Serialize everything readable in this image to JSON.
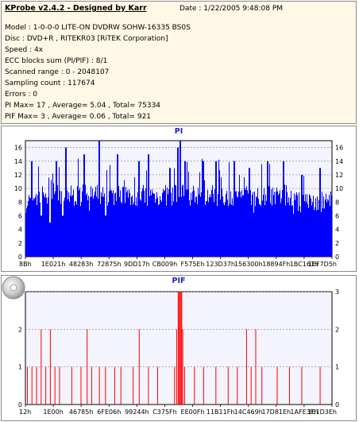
{
  "header": {
    "app_title": "KProbe v2.4.2 - Designed by Karr",
    "date": "Date : 1/22/2005 9:48:08 PM"
  },
  "info_lines": [
    "Model : 1-0-0-0 LITE-ON DVDRW SOHW-16335 BS0S",
    "Disc : DVD+R , RITEKR03 [RiTEK Corporation]",
    "Speed : 4x",
    "ECC blocks sum (PI/PIF) : 8/1",
    "Scanned range : 0 - 2048107",
    "Sampling count : 117674",
    "Errors : 0",
    "PI Max= 17 , Average= 5.04 , Total= 75334",
    "PIF Max= 3 , Average= 0.06 , Total= 921"
  ],
  "chart_data": [
    {
      "type": "bar",
      "title": "PI",
      "ylim": [
        0,
        17
      ],
      "yticks": [
        0,
        2,
        4,
        6,
        8,
        10,
        12,
        14,
        16
      ],
      "xticks": [
        "8Bh",
        "1E021h",
        "48283h",
        "72875h",
        "9DD17h",
        "CB009h",
        "F575Eh",
        "123D37h",
        "156300h",
        "18894Fh",
        "1BC161h",
        "1EF7D5h"
      ],
      "grid": true,
      "bar_color": "#0000ff",
      "baseline": [
        8,
        9,
        9,
        10,
        9,
        9,
        9,
        9,
        9,
        9,
        9,
        9,
        9,
        9,
        9,
        9,
        9,
        9,
        9,
        9,
        9,
        9,
        9,
        9,
        9,
        9,
        9,
        9,
        9,
        9,
        9,
        9,
        9,
        9,
        9,
        8,
        8,
        8,
        8,
        8
      ],
      "notes": "per-sample PI counts; dense noise around baseline with spikes",
      "peaks": [
        {
          "pos": 0.02,
          "value": 14
        },
        {
          "pos": 0.05,
          "value": 13
        },
        {
          "pos": 0.1,
          "value": 14
        },
        {
          "pos": 0.13,
          "value": 16
        },
        {
          "pos": 0.19,
          "value": 15
        },
        {
          "pos": 0.24,
          "value": 17
        },
        {
          "pos": 0.3,
          "value": 15
        },
        {
          "pos": 0.37,
          "value": 14
        },
        {
          "pos": 0.4,
          "value": 15
        },
        {
          "pos": 0.47,
          "value": 13
        },
        {
          "pos": 0.495,
          "value": 16
        },
        {
          "pos": 0.505,
          "value": 17
        },
        {
          "pos": 0.52,
          "value": 14
        },
        {
          "pos": 0.58,
          "value": 14
        },
        {
          "pos": 0.62,
          "value": 14
        },
        {
          "pos": 0.68,
          "value": 14
        },
        {
          "pos": 0.73,
          "value": 13
        },
        {
          "pos": 0.79,
          "value": 14
        },
        {
          "pos": 0.84,
          "value": 14
        },
        {
          "pos": 0.9,
          "value": 12
        },
        {
          "pos": 0.96,
          "value": 13
        }
      ],
      "dips": [
        {
          "pos": 0.05,
          "value": 6
        },
        {
          "pos": 0.08,
          "value": 5
        },
        {
          "pos": 0.12,
          "value": 6
        },
        {
          "pos": 0.26,
          "value": 6
        }
      ]
    },
    {
      "type": "bar",
      "title": "PIF",
      "ylim": [
        0,
        3
      ],
      "yticks": [
        0,
        1,
        2,
        3
      ],
      "xticks": [
        "12h",
        "1E00h",
        "46785h",
        "6FE06h",
        "99244h",
        "C375Fh",
        "EE00Fh",
        "11B11Fh",
        "14C469h",
        "17D81Eh",
        "1AFE3Fh",
        "1E1D3Eh"
      ],
      "grid": true,
      "bar_color": "#ff0000",
      "spikes": [
        {
          "pos": 0.005,
          "value": 1
        },
        {
          "pos": 0.02,
          "value": 1
        },
        {
          "pos": 0.035,
          "value": 1
        },
        {
          "pos": 0.05,
          "value": 2
        },
        {
          "pos": 0.065,
          "value": 1
        },
        {
          "pos": 0.08,
          "value": 2
        },
        {
          "pos": 0.095,
          "value": 1
        },
        {
          "pos": 0.11,
          "value": 1
        },
        {
          "pos": 0.15,
          "value": 1
        },
        {
          "pos": 0.18,
          "value": 1
        },
        {
          "pos": 0.2,
          "value": 2
        },
        {
          "pos": 0.215,
          "value": 1
        },
        {
          "pos": 0.24,
          "value": 1
        },
        {
          "pos": 0.26,
          "value": 1
        },
        {
          "pos": 0.29,
          "value": 1
        },
        {
          "pos": 0.31,
          "value": 1
        },
        {
          "pos": 0.35,
          "value": 1
        },
        {
          "pos": 0.37,
          "value": 2
        },
        {
          "pos": 0.4,
          "value": 1
        },
        {
          "pos": 0.43,
          "value": 1
        },
        {
          "pos": 0.485,
          "value": 1
        },
        {
          "pos": 0.492,
          "value": 2
        },
        {
          "pos": 0.497,
          "value": 3
        },
        {
          "pos": 0.502,
          "value": 3
        },
        {
          "pos": 0.507,
          "value": 3
        },
        {
          "pos": 0.512,
          "value": 2
        },
        {
          "pos": 0.518,
          "value": 1
        },
        {
          "pos": 0.55,
          "value": 1
        },
        {
          "pos": 0.58,
          "value": 1
        },
        {
          "pos": 0.62,
          "value": 1
        },
        {
          "pos": 0.66,
          "value": 1
        },
        {
          "pos": 0.69,
          "value": 1
        },
        {
          "pos": 0.72,
          "value": 2
        },
        {
          "pos": 0.735,
          "value": 1
        },
        {
          "pos": 0.75,
          "value": 2
        },
        {
          "pos": 0.77,
          "value": 1
        },
        {
          "pos": 0.82,
          "value": 1
        },
        {
          "pos": 0.86,
          "value": 1
        },
        {
          "pos": 0.9,
          "value": 1
        },
        {
          "pos": 0.96,
          "value": 1
        }
      ]
    }
  ],
  "icons": {
    "disc": "disc-icon"
  }
}
